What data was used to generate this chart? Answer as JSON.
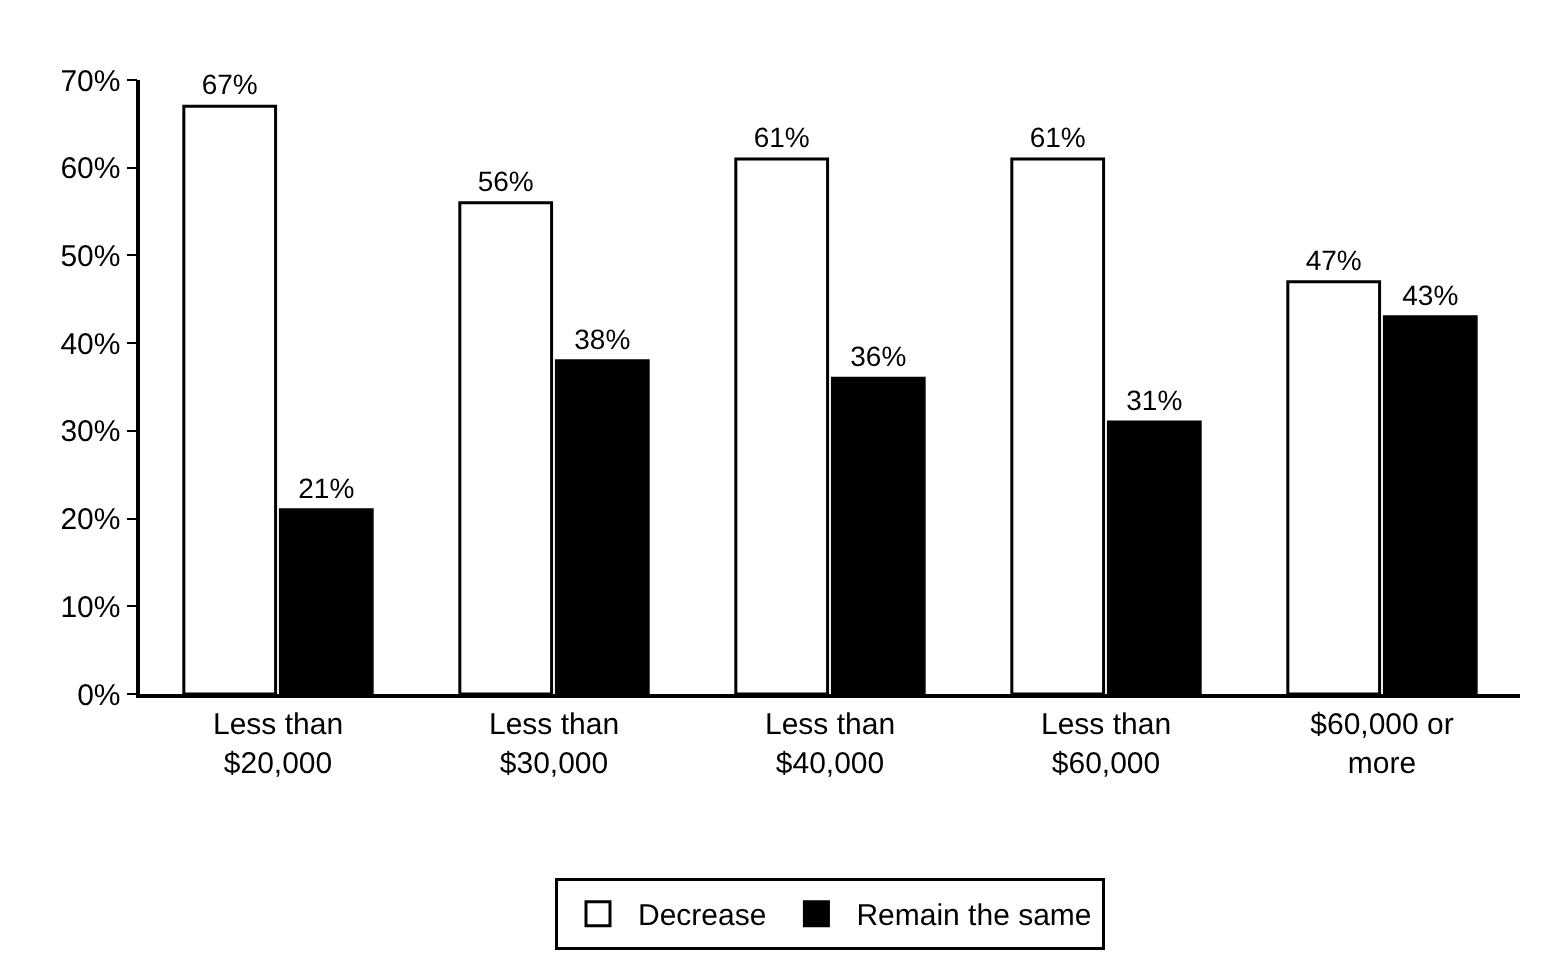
{
  "chart_data": {
    "type": "bar",
    "categories": [
      "Less than\n$20,000",
      "Less than\n$30,000",
      "Less than\n$40,000",
      "Less than\n$60,000",
      "$60,000 or\nmore"
    ],
    "series": [
      {
        "name": "Decrease",
        "color": "#ffffff",
        "values": [
          67,
          56,
          61,
          61,
          47
        ],
        "value_labels": [
          "67%",
          "56%",
          "61%",
          "61%",
          "47%"
        ]
      },
      {
        "name": "Remain the same",
        "color": "#000000",
        "values": [
          21,
          38,
          36,
          31,
          43
        ],
        "value_labels": [
          "21%",
          "38%",
          "36%",
          "31%",
          "43%"
        ]
      }
    ],
    "ylim": [
      0,
      70
    ],
    "yticks": [
      {
        "value": 0,
        "label": "0%"
      },
      {
        "value": 10,
        "label": "10%"
      },
      {
        "value": 20,
        "label": "20%"
      },
      {
        "value": 30,
        "label": "30%"
      },
      {
        "value": 40,
        "label": "40%"
      },
      {
        "value": 50,
        "label": "50%"
      },
      {
        "value": 60,
        "label": "60%"
      },
      {
        "value": 70,
        "label": "70%"
      }
    ],
    "grid": false,
    "legend": "bottom"
  }
}
